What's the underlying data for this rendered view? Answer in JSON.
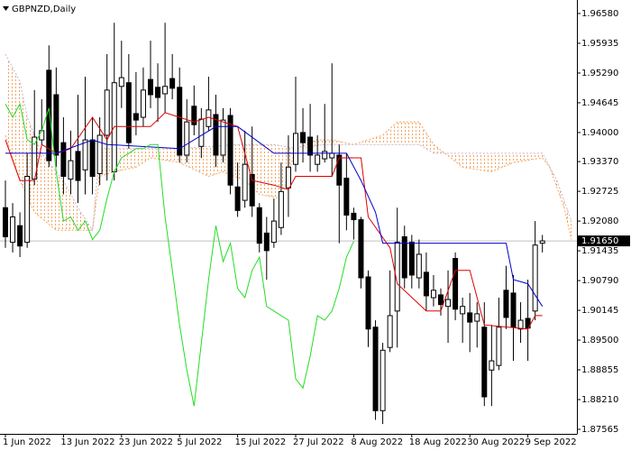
{
  "chart_data": {
    "type": "candlestick",
    "title": "GBPNZD,Daily",
    "categories": [
      "1 Jun 2022",
      null,
      null,
      null,
      null,
      null,
      null,
      null,
      "13 Jun 2022",
      null,
      null,
      null,
      null,
      null,
      null,
      null,
      "23 Jun 2022",
      null,
      null,
      null,
      null,
      null,
      null,
      null,
      "5 Jul 2022",
      null,
      null,
      null,
      null,
      null,
      null,
      null,
      "15 Jul 2022",
      null,
      null,
      null,
      null,
      null,
      null,
      null,
      "27 Jul 2022",
      null,
      null,
      null,
      null,
      null,
      null,
      null,
      "8 Aug 2022",
      null,
      null,
      null,
      null,
      null,
      null,
      null,
      "18 Aug 2022",
      null,
      null,
      null,
      null,
      null,
      null,
      null,
      "30 Aug 2022",
      null,
      null,
      null,
      null,
      null,
      null,
      null,
      "9 Sep 2022",
      null,
      null
    ],
    "open": [
      1.9237,
      1.9162,
      1.9198,
      1.9162,
      1.9299,
      1.9384,
      1.9535,
      1.9482,
      1.9378,
      1.9299,
      1.9359,
      1.9319,
      1.9384,
      1.9311,
      1.9394,
      1.9315,
      1.95,
      1.9508,
      1.9441,
      1.9433,
      1.9515,
      1.9498,
      1.9484,
      1.9517,
      1.9498,
      1.9351,
      1.9457,
      1.937,
      1.9413,
      1.9439,
      1.9351,
      1.9437,
      1.9282,
      1.9253,
      1.9309,
      1.9237,
      1.9182,
      1.9162,
      1.9194,
      1.928,
      1.9331,
      1.94,
      1.939,
      1.9331,
      1.9343,
      1.9345,
      1.9351,
      1.9301,
      1.9225,
      1.9211,
      1.9087,
      1.8978,
      1.8797,
      1.8934,
      1.9013,
      1.9174,
      1.9162,
      1.9085,
      1.9097,
      1.9042,
      1.9048,
      1.9023,
      1.9127,
      1.9007,
      1.9009,
      1.8991,
      1.8978,
      1.8885,
      1.8895,
      1.9058,
      1.9052,
      1.8974,
      1.8997,
      1.9013,
      1.916
    ],
    "high": [
      1.9296,
      1.9247,
      1.9227,
      1.9355,
      1.9492,
      1.9472,
      1.9589,
      1.9541,
      1.9433,
      1.9404,
      1.9482,
      1.9521,
      1.9433,
      1.9433,
      1.957,
      1.9638,
      1.9599,
      1.957,
      1.9531,
      1.9541,
      1.9599,
      1.955,
      1.9638,
      1.957,
      1.9541,
      1.9472,
      1.9502,
      1.9453,
      1.9521,
      1.9482,
      1.9453,
      1.9453,
      1.9335,
      1.9404,
      1.9413,
      1.9247,
      1.9217,
      1.9257,
      1.9335,
      1.9394,
      1.9521,
      1.9453,
      1.9462,
      1.9394,
      1.9462,
      1.955,
      1.9374,
      1.9355,
      1.9237,
      1.9217,
      1.9101,
      1.8993,
      1.8944,
      1.9101,
      1.9237,
      1.9198,
      1.9178,
      1.9168,
      1.914,
      1.9091,
      1.9062,
      1.9101,
      1.914,
      1.9042,
      1.9052,
      1.9032,
      1.9032,
      1.8983,
      1.9042,
      1.9111,
      1.9091,
      1.9032,
      1.9081,
      1.9208,
      1.9178
    ],
    "low": [
      1.915,
      1.914,
      1.913,
      1.915,
      1.9286,
      1.9374,
      1.9325,
      1.9325,
      1.9266,
      1.9266,
      1.9247,
      1.9266,
      1.9266,
      1.9286,
      1.9296,
      1.9296,
      1.9453,
      1.9365,
      1.9394,
      1.9413,
      1.9453,
      1.9423,
      1.9443,
      1.9472,
      1.9335,
      1.9335,
      1.9394,
      1.9345,
      1.9404,
      1.9325,
      1.9335,
      1.9266,
      1.9217,
      1.9237,
      1.9217,
      1.914,
      1.9081,
      1.915,
      1.9178,
      1.9217,
      1.9315,
      1.9335,
      1.9315,
      1.9315,
      1.9335,
      1.9305,
      1.916,
      1.9188,
      1.9168,
      1.9062,
      1.8935,
      1.8777,
      1.8768,
      1.8924,
      1.8934,
      1.9062,
      1.9062,
      1.9062,
      1.9013,
      1.9023,
      1.9003,
      1.8944,
      1.8993,
      1.8944,
      1.8924,
      1.8934,
      1.8807,
      1.8807,
      1.8885,
      1.8974,
      1.8905,
      1.8944,
      1.8905,
      1.8993,
      1.914
    ],
    "close": [
      1.9174,
      1.9217,
      1.9154,
      1.9305,
      1.939,
      1.9404,
      1.9339,
      1.9351,
      1.9305,
      1.9339,
      1.9296,
      1.9384,
      1.9305,
      1.9394,
      1.9492,
      1.9508,
      1.9519,
      1.9378,
      1.9427,
      1.9492,
      1.9482,
      1.9476,
      1.95,
      1.9496,
      1.9351,
      1.9423,
      1.9417,
      1.9429,
      1.9449,
      1.9351,
      1.9427,
      1.9286,
      1.9231,
      1.9331,
      1.9241,
      1.916,
      1.9144,
      1.9208,
      1.9272,
      1.9325,
      1.9398,
      1.9378,
      1.9351,
      1.9351,
      1.9359,
      1.9355,
      1.9286,
      1.9221,
      1.9211,
      1.9085,
      1.8974,
      1.8797,
      1.8928,
      1.9003,
      1.9162,
      1.9085,
      1.9091,
      1.9136,
      1.9046,
      1.9058,
      1.9027,
      1.9038,
      1.9017,
      1.9023,
      1.8989,
      1.9007,
      1.8827,
      1.8905,
      1.8978,
      1.8999,
      1.8978,
      1.8993,
      1.8976,
      1.9156,
      1.9165
    ],
    "up_color": "#ffffff",
    "down_color": "#000000",
    "cloud_color": "#f4a460",
    "lines": [
      {
        "color": "#dd0000",
        "style": "solid",
        "x": [
          0,
          2,
          4,
          5,
          7,
          9,
          12,
          14,
          15,
          20,
          22,
          26,
          28,
          30,
          32,
          34,
          37,
          39,
          40,
          45,
          46,
          49,
          50,
          53,
          54,
          58,
          60,
          62,
          64,
          66,
          72,
          73,
          74
        ],
        "values": [
          1.9384,
          1.9296,
          1.9296,
          1.9374,
          1.9355,
          1.9365,
          1.9433,
          1.9384,
          1.9413,
          1.9413,
          1.9443,
          1.9423,
          1.9433,
          1.9423,
          1.9413,
          1.9296,
          1.9286,
          1.9276,
          1.9305,
          1.9305,
          1.9345,
          1.9345,
          1.9217,
          1.915,
          1.9072,
          1.9013,
          1.9013,
          1.9101,
          1.9101,
          1.8983,
          1.8974,
          1.9003,
          1.9003
        ]
      },
      {
        "color": "#0000cc",
        "style": "solid",
        "x": [
          0,
          7,
          12,
          14,
          24,
          29,
          31,
          32,
          37,
          46,
          47,
          49,
          51,
          52,
          69,
          70,
          72,
          74
        ],
        "values": [
          1.9355,
          1.9355,
          1.9384,
          1.9374,
          1.9365,
          1.9413,
          1.9413,
          1.9413,
          1.9355,
          1.9355,
          1.9355,
          1.9296,
          1.9227,
          1.916,
          1.916,
          1.9081,
          1.9072,
          1.9023
        ]
      },
      {
        "color": "#22dd22",
        "style": "solid",
        "x": [
          0,
          1,
          2,
          3,
          4,
          5,
          6,
          7,
          8,
          9,
          10,
          11,
          12,
          13,
          14,
          15,
          16,
          17,
          18,
          19,
          20,
          21,
          22,
          23,
          24,
          25,
          26,
          27,
          28,
          29,
          30,
          31,
          32,
          33,
          34,
          35,
          36,
          37,
          38,
          39,
          40,
          41,
          42,
          43,
          44,
          45,
          46,
          47,
          48
        ],
        "values": [
          1.9462,
          1.9433,
          1.9462,
          1.9384,
          1.9374,
          1.9404,
          1.9453,
          1.9315,
          1.9208,
          1.9217,
          1.9188,
          1.9208,
          1.9168,
          1.9188,
          1.9257,
          1.9315,
          1.9345,
          1.9355,
          1.9365,
          1.9365,
          1.9374,
          1.9374,
          1.9217,
          1.9101,
          1.8983,
          1.8885,
          1.8807,
          1.8944,
          1.9081,
          1.9198,
          1.912,
          1.916,
          1.9062,
          1.9042,
          1.9101,
          1.913,
          1.9023,
          1.9013,
          1.9003,
          1.8993,
          1.8866,
          1.8846,
          1.8915,
          1.9003,
          1.8993,
          1.9013,
          1.9062,
          1.913,
          1.9164
        ]
      },
      {
        "color": "#f4a460",
        "style": "dotted",
        "x": [
          0,
          2,
          4,
          7,
          12,
          13,
          15,
          18,
          20,
          24,
          28,
          30,
          33,
          35,
          38,
          40,
          43,
          45,
          48,
          52,
          54,
          57,
          59,
          63,
          67,
          70,
          74,
          75,
          77,
          78
        ],
        "values": [
          1.9394,
          1.9296,
          1.9227,
          1.9188,
          1.9188,
          1.9305,
          1.9315,
          1.9325,
          1.9345,
          1.9335,
          1.9305,
          1.9315,
          1.9296,
          1.9266,
          1.9257,
          1.9365,
          1.9384,
          1.9384,
          1.9374,
          1.9394,
          1.9423,
          1.9423,
          1.9374,
          1.9325,
          1.9315,
          1.9335,
          1.9345,
          1.9325,
          1.9237,
          1.9168
        ]
      },
      {
        "color": "#c8b4d8",
        "style": "dotted",
        "x": [
          0,
          2,
          3,
          5,
          8,
          10,
          12,
          13,
          24,
          32,
          37,
          40,
          44,
          52,
          57,
          59,
          69,
          74,
          76,
          78
        ],
        "values": [
          1.957,
          1.9511,
          1.9433,
          1.9355,
          1.9296,
          1.9237,
          1.9188,
          1.9365,
          1.9365,
          1.9374,
          1.9374,
          1.9365,
          1.9374,
          1.9374,
          1.9374,
          1.9355,
          1.9355,
          1.9355,
          1.9296,
          1.9208
        ]
      }
    ],
    "current_price": {
      "value": 1.9165,
      "label": "1.91650"
    },
    "ylim": [
      1.87467,
      1.96873
    ],
    "yticks": [
      {
        "value": 1.9658,
        "label": "1.96580"
      },
      1.95935,
      {
        "value": 1.9529,
        "label": "1.95290"
      },
      1.94645,
      {
        "value": 1.94,
        "label": "1.94000"
      },
      {
        "value": 1.9337,
        "label": "1.93370"
      },
      1.92725,
      {
        "value": 1.9208,
        "label": "1.92080"
      },
      1.91435,
      {
        "value": 1.9079,
        "label": "1.90790"
      },
      1.90145,
      {
        "value": 1.895,
        "label": "1.89500"
      },
      1.88855,
      {
        "value": 1.8821,
        "label": "1.88210"
      },
      1.87565
    ],
    "grid": false
  }
}
